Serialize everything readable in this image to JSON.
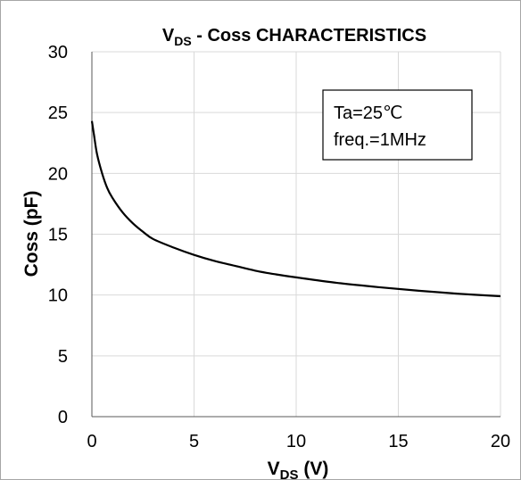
{
  "chart_data": {
    "type": "line",
    "title_main": "V",
    "title_sub": "DS",
    "title_rest": " - Coss CHARACTERISTICS",
    "xlabel_main": "V",
    "xlabel_sub": "DS",
    "xlabel_rest": " (V)",
    "ylabel": "Coss (pF)",
    "xlim": [
      0,
      20
    ],
    "ylim": [
      0,
      30
    ],
    "x_ticks": [
      "0",
      "5",
      "10",
      "15",
      "20"
    ],
    "y_ticks": [
      "0",
      "5",
      "10",
      "15",
      "20",
      "25",
      "30"
    ],
    "grid": true,
    "annotation": [
      "Ta=25℃",
      "freq.=1MHz"
    ],
    "series": [
      {
        "x": [
          0,
          0.1,
          0.25,
          0.5,
          0.75,
          1,
          1.5,
          2,
          2.5,
          3,
          4,
          5,
          6,
          7,
          8,
          9,
          10,
          12,
          14,
          16,
          18,
          20
        ],
        "y": [
          24.3,
          23.2,
          21.6,
          20.0,
          18.8,
          18.0,
          16.8,
          15.9,
          15.2,
          14.6,
          13.9,
          13.3,
          12.8,
          12.4,
          12.0,
          11.7,
          11.45,
          11.0,
          10.65,
          10.35,
          10.1,
          9.9
        ]
      }
    ]
  }
}
